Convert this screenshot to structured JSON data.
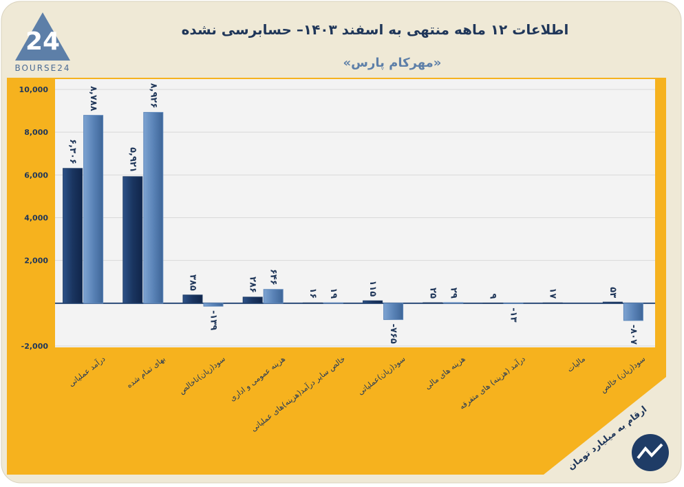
{
  "chart_data": {
    "type": "bar",
    "title": "اطلاعات ۱۲ ماهه منتهی به اسفند ۱۴۰۳– حسابرسی نشده",
    "subtitle": "«مهرکام پارس»",
    "note": "ارقام به میلیارد تومان",
    "logo": {
      "mark": "24",
      "text": "BOURSE24"
    },
    "categories": [
      "درآمد عملیاتی",
      "بهای تمام شده",
      "سود(زیان)ناخالص",
      "هزینه عمومی و اداری",
      "خالص سایر درآمد(هزینه)های عملیاتی",
      "سود(زیان)عملیاتی",
      "هزینه های مالی",
      "درآمد (هزینه) های متفرقه",
      "مالیات",
      "سود(زیان) خالص"
    ],
    "series": [
      {
        "color": "#1f3c66",
        "values": [
          6306,
          5921,
          385,
          286,
          16,
          115,
          25,
          9,
          17,
          53
        ],
        "value_labels": [
          "۶,۳۰۶",
          "۵,۹۲۱",
          "۳۸۵",
          "۲۸۶",
          "۱۶",
          "۱۱۵",
          "۲۵",
          "۹",
          "۱۷",
          "۵۳"
        ]
      },
      {
        "color": "#5c86ba",
        "values": [
          8788,
          8926,
          -139,
          646,
          19,
          -765,
          29,
          -13,
          null,
          -807
        ],
        "value_labels": [
          "۸,۷۸۸",
          "۸,۹۲۶",
          "-۱۳۹",
          "۶۴۶",
          "۱۹",
          "-۷۶۵",
          "۲۹",
          "-۱۳",
          null,
          "-۸۰۷"
        ]
      }
    ],
    "ylim": [
      -2000,
      10000
    ],
    "yticks": [
      {
        "value": -2000,
        "label": "-2,000"
      },
      {
        "value": 2000,
        "label": "2,000"
      },
      {
        "value": 4000,
        "label": "4,000"
      },
      {
        "value": 6000,
        "label": "6,000"
      },
      {
        "value": 8000,
        "label": "8,000"
      },
      {
        "value": 10000,
        "label": "10,000"
      }
    ],
    "grid": true
  }
}
